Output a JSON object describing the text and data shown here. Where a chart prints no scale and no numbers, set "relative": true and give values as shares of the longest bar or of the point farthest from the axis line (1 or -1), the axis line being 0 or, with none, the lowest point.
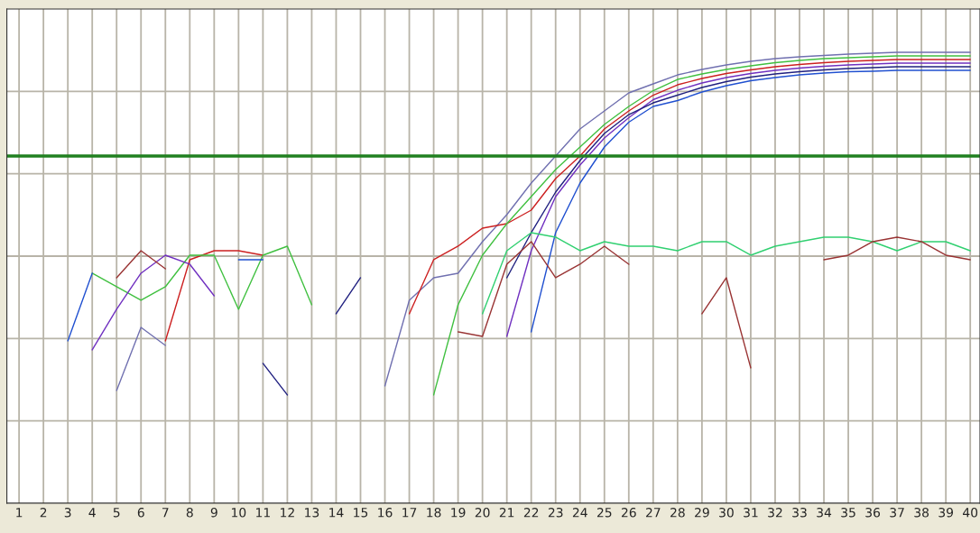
{
  "chart_data": {
    "type": "line",
    "relative": true,
    "grid": true,
    "tick_labels": "x",
    "marker": "none",
    "line_style": "solid",
    "xlim": [
      0.5,
      40.4
    ],
    "xticks": [
      1,
      2,
      3,
      4,
      5,
      6,
      7,
      8,
      9,
      10,
      11,
      12,
      13,
      14,
      15,
      16,
      17,
      18,
      19,
      20,
      21,
      22,
      23,
      24,
      25,
      26,
      27,
      28,
      29,
      30,
      31,
      32,
      33,
      34,
      35,
      36,
      37,
      38,
      39,
      40
    ],
    "ref_lines": [
      {
        "axis": "y",
        "value": 0.77,
        "color": "#208020",
        "line_style": "solid"
      }
    ],
    "series": [
      {
        "color": "#7070b0",
        "x": [
          5,
          6,
          7,
          8,
          16,
          17,
          18,
          19,
          20,
          21,
          22,
          23,
          24,
          25,
          26,
          27,
          28,
          29,
          30,
          31,
          32,
          33,
          34,
          35,
          36,
          37,
          38,
          39,
          40
        ],
        "values": [
          0.25,
          0.39,
          0.35,
          null,
          0.26,
          0.45,
          0.5,
          0.51,
          0.58,
          0.64,
          0.71,
          0.77,
          0.83,
          0.87,
          0.91,
          0.93,
          0.95,
          0.962,
          0.972,
          0.98,
          0.986,
          0.99,
          0.993,
          0.996,
          0.998,
          1.0,
          1.0,
          1.0,
          1.0
        ]
      },
      {
        "color": "#cc2020",
        "x": [
          7,
          8,
          9,
          10,
          11,
          12,
          13,
          14,
          15,
          16,
          17,
          18,
          19,
          20,
          21,
          22,
          23,
          24,
          25,
          26,
          27,
          28,
          29,
          30,
          31,
          32,
          33,
          34,
          35,
          36,
          37,
          38,
          39,
          40
        ],
        "values": [
          0.36,
          0.54,
          0.56,
          0.56,
          0.55,
          null,
          null,
          null,
          null,
          null,
          0.42,
          0.54,
          0.57,
          0.61,
          0.62,
          0.65,
          0.72,
          0.77,
          0.83,
          0.87,
          0.905,
          0.928,
          0.942,
          0.953,
          0.961,
          0.968,
          0.973,
          0.977,
          0.98,
          0.982,
          0.984,
          0.984,
          0.984,
          0.984
        ]
      },
      {
        "color": "#40c040",
        "x": [
          4,
          5,
          6,
          7,
          8,
          9,
          10,
          11,
          12,
          13,
          14,
          15,
          16,
          17,
          18,
          19,
          20,
          21,
          22,
          23,
          24,
          25,
          26,
          27,
          28,
          29,
          30,
          31,
          32,
          33,
          34,
          35,
          36,
          37,
          38,
          39,
          40
        ],
        "values": [
          0.51,
          0.48,
          0.45,
          0.48,
          0.55,
          0.55,
          0.43,
          0.55,
          0.57,
          0.44,
          null,
          null,
          null,
          null,
          0.24,
          0.44,
          0.55,
          0.62,
          0.68,
          0.74,
          0.79,
          0.84,
          0.88,
          0.915,
          0.94,
          0.952,
          0.962,
          0.97,
          0.977,
          0.982,
          0.986,
          0.988,
          0.99,
          0.992,
          0.992,
          0.992,
          0.992
        ]
      },
      {
        "color": "#7030c0",
        "x": [
          4,
          5,
          6,
          7,
          8,
          9,
          10,
          11,
          12,
          13,
          14,
          15,
          16,
          17,
          18,
          19,
          20,
          21,
          22,
          23,
          24,
          25,
          26,
          27,
          28,
          29,
          30,
          31,
          32,
          33,
          34,
          35,
          36,
          37,
          38,
          39,
          40
        ],
        "values": [
          0.34,
          0.43,
          0.51,
          0.55,
          0.53,
          0.46,
          null,
          null,
          null,
          null,
          null,
          null,
          null,
          null,
          null,
          null,
          null,
          0.37,
          0.56,
          0.68,
          0.75,
          0.81,
          0.855,
          0.895,
          0.916,
          0.932,
          0.944,
          0.953,
          0.96,
          0.965,
          0.969,
          0.972,
          0.974,
          0.976,
          0.976,
          0.976,
          0.976
        ]
      },
      {
        "color": "#2050d0",
        "x": [
          3,
          4,
          5,
          6,
          7,
          8,
          9,
          10,
          11,
          12,
          13,
          14,
          15,
          16,
          17,
          18,
          19,
          20,
          21,
          22,
          23,
          24,
          25,
          26,
          27,
          28,
          29,
          30,
          31,
          32,
          33,
          34,
          35,
          36,
          37,
          38,
          39,
          40
        ],
        "values": [
          0.36,
          0.51,
          null,
          null,
          null,
          null,
          null,
          0.54,
          0.54,
          null,
          null,
          null,
          null,
          null,
          null,
          null,
          null,
          null,
          null,
          0.38,
          0.6,
          0.71,
          0.79,
          0.845,
          0.88,
          0.893,
          0.912,
          0.926,
          0.937,
          0.944,
          0.95,
          0.954,
          0.957,
          0.958,
          0.96,
          0.96,
          0.96,
          0.96
        ]
      },
      {
        "color": "#202080",
        "x": [
          11,
          12,
          13,
          14,
          15,
          16,
          17,
          18,
          19,
          20,
          21,
          22,
          23,
          24,
          25,
          26,
          27,
          28,
          29,
          30,
          31,
          32,
          33,
          34,
          35,
          36,
          37,
          38,
          39,
          40
        ],
        "values": [
          0.31,
          0.24,
          null,
          0.42,
          0.5,
          null,
          null,
          null,
          null,
          null,
          0.5,
          0.6,
          0.69,
          0.76,
          0.82,
          0.862,
          0.888,
          0.905,
          0.922,
          0.935,
          0.945,
          0.952,
          0.957,
          0.961,
          0.964,
          0.966,
          0.968,
          0.968,
          0.968,
          0.968
        ]
      },
      {
        "color": "#30d070",
        "x": [
          20,
          21,
          22,
          23,
          24,
          25,
          26,
          27,
          28,
          29,
          30,
          31,
          32,
          33,
          34,
          35,
          36,
          37,
          38,
          39,
          40
        ],
        "values": [
          0.42,
          0.56,
          0.6,
          0.59,
          0.56,
          0.58,
          0.57,
          0.57,
          0.56,
          0.58,
          0.58,
          0.55,
          0.57,
          0.58,
          0.59,
          0.59,
          0.58,
          0.56,
          0.58,
          0.58,
          0.56
        ]
      },
      {
        "color": "#993333",
        "x": [
          5,
          6,
          7,
          8,
          9,
          10,
          11,
          12,
          13,
          14,
          15,
          16,
          17,
          18,
          19,
          20,
          21,
          22,
          23,
          24,
          25,
          26,
          27,
          28,
          29,
          30,
          31,
          32,
          33,
          34,
          35,
          36,
          37,
          38,
          39,
          40
        ],
        "values": [
          0.5,
          0.56,
          0.52,
          null,
          null,
          null,
          null,
          null,
          null,
          null,
          null,
          null,
          null,
          null,
          0.38,
          0.37,
          0.53,
          0.58,
          0.5,
          0.53,
          0.57,
          0.53,
          null,
          null,
          0.42,
          0.5,
          0.3,
          null,
          null,
          0.54,
          0.55,
          0.58,
          0.59,
          0.58,
          0.55,
          0.54
        ]
      }
    ]
  }
}
